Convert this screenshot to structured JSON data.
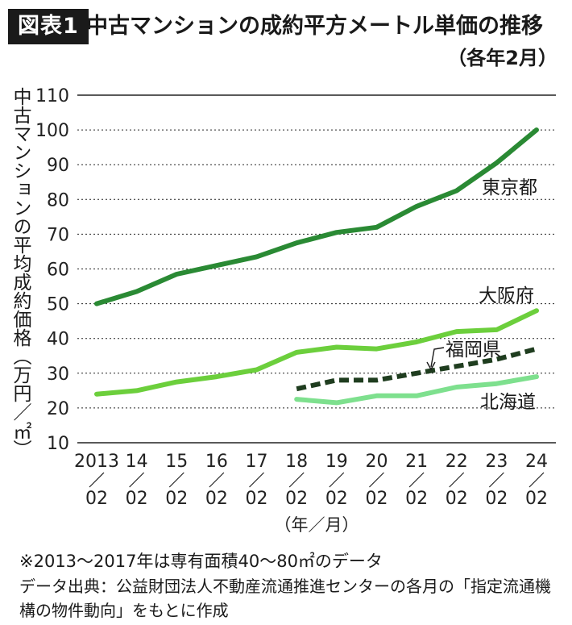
{
  "figure": {
    "badge": "図表1",
    "title": "中古マンションの成約平方メートル単価の推移",
    "subtitle": "（各年2月）"
  },
  "chart_data": {
    "type": "line",
    "ylabel": "中古マンションの平均成約価格（万円／㎡）",
    "xlabel": "（年／月）",
    "ylim": [
      10,
      110
    ],
    "yticks": [
      "10",
      "20",
      "30",
      "40",
      "50",
      "60",
      "70",
      "80",
      "90",
      "100",
      "110"
    ],
    "x_years": [
      "2013",
      "14",
      "15",
      "16",
      "17",
      "18",
      "19",
      "20",
      "21",
      "22",
      "23",
      "24"
    ],
    "x_months": [
      "02",
      "02",
      "02",
      "02",
      "02",
      "02",
      "02",
      "02",
      "02",
      "02",
      "02",
      "02"
    ],
    "grid": "horizontal dashed",
    "series": [
      {
        "name": "東京都",
        "color": "#2a8a34",
        "style": "solid",
        "values": [
          50,
          53.5,
          58.5,
          61,
          63.5,
          67.5,
          70.5,
          72,
          78,
          82.5,
          90.5,
          100
        ]
      },
      {
        "name": "大阪府",
        "color": "#6ccf3c",
        "style": "solid",
        "values": [
          24,
          25,
          27.5,
          29,
          31,
          36,
          37.5,
          37,
          39,
          42,
          42.5,
          48
        ]
      },
      {
        "name": "福岡県",
        "color": "#1f3d1f",
        "style": "dashed",
        "values": [
          null,
          null,
          null,
          null,
          null,
          25.5,
          28,
          28,
          30,
          32,
          34,
          37
        ]
      },
      {
        "name": "北海道",
        "color": "#7ee08e",
        "style": "solid",
        "values": [
          null,
          null,
          null,
          null,
          null,
          22.5,
          21.5,
          23.5,
          23.5,
          26,
          27,
          29
        ]
      }
    ]
  },
  "footnote": "※2013〜2017年は専有面積40〜80㎡のデータ",
  "source": "データ出典：公益財団法人不動産流通推進センターの各月の「指定流通機構の物件動向」をもとに作成"
}
